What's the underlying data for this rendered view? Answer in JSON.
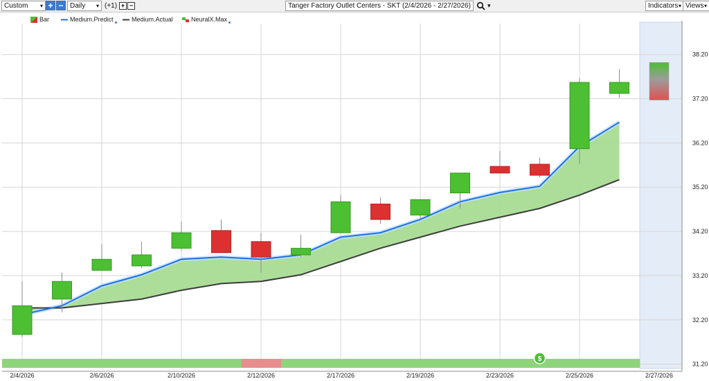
{
  "toolbar": {
    "period_select": "Custom",
    "interval_select": "Daily",
    "offset_label": "(+1)",
    "chart_title": "Tanger Factory Outlet Centers - SKT (2/4/2026 - 2/27/2026)",
    "indicators_label": "Indicators",
    "views_label": "Views",
    "plus_glyph": "+",
    "minus_glyph": "−",
    "caret_glyph": "▾"
  },
  "legend": [
    {
      "label": "Bar",
      "icon": "bar-swatch-icon"
    },
    {
      "label": "Medium.Predict",
      "icon": "blue-line-icon"
    },
    {
      "label": "Medium.Actual",
      "icon": "dark-line-icon"
    },
    {
      "label": "NeuralX.Max",
      "icon": "neuralx-swatch-icon"
    }
  ],
  "colors": {
    "up": "#4cbf33",
    "down": "#dd3030",
    "predict": "#1f6fe0",
    "actual": "#3b3b3b",
    "band_fill": "#a8dc94",
    "forecast_bg": "#e4ecf7",
    "strip_green": "#8fd47c",
    "strip_red": "#e88d8d",
    "grid": "#d6d6d6"
  },
  "chart_data": {
    "type": "candlestick",
    "title": "Tanger Factory Outlet Centers - SKT (2/4/2026 - 2/27/2026)",
    "ylim": [
      31.1,
      38.9
    ],
    "y_ticks": [
      "31.20",
      "32.20",
      "33.20",
      "34.20",
      "35.20",
      "36.20",
      "37.20",
      "38.20"
    ],
    "x_tick_labels": [
      "2/4/2026",
      "2/6/2026",
      "2/10/2026",
      "2/12/2026",
      "2/17/2026",
      "2/19/2026",
      "2/23/2026",
      "2/25/2026",
      "2/27/2026"
    ],
    "dates": [
      "2/4/2026",
      "2/5/2026",
      "2/6/2026",
      "2/9/2026",
      "2/10/2026",
      "2/11/2026",
      "2/12/2026",
      "2/13/2026",
      "2/17/2026",
      "2/18/2026",
      "2/19/2026",
      "2/20/2026",
      "2/23/2026",
      "2/24/2026",
      "2/25/2026",
      "2/26/2026"
    ],
    "candles": [
      {
        "date": "2/4/2026",
        "open": 31.87,
        "high": 33.07,
        "low": 31.81,
        "close": 32.52
      },
      {
        "date": "2/5/2026",
        "open": 32.67,
        "high": 33.27,
        "low": 32.37,
        "close": 33.07
      },
      {
        "date": "2/6/2026",
        "open": 33.32,
        "high": 33.92,
        "low": 33.32,
        "close": 33.57
      },
      {
        "date": "2/9/2026",
        "open": 33.42,
        "high": 33.97,
        "low": 33.37,
        "close": 33.67
      },
      {
        "date": "2/10/2026",
        "open": 33.82,
        "high": 34.42,
        "low": 33.77,
        "close": 34.17
      },
      {
        "date": "2/11/2026",
        "open": 34.22,
        "high": 34.47,
        "low": 33.72,
        "close": 33.72
      },
      {
        "date": "2/12/2026",
        "open": 33.97,
        "high": 34.17,
        "low": 33.27,
        "close": 33.62
      },
      {
        "date": "2/13/2026",
        "open": 33.67,
        "high": 34.12,
        "low": 33.62,
        "close": 33.82
      },
      {
        "date": "2/17/2026",
        "open": 34.17,
        "high": 35.02,
        "low": 34.17,
        "close": 34.87
      },
      {
        "date": "2/18/2026",
        "open": 34.82,
        "high": 34.97,
        "low": 34.37,
        "close": 34.47
      },
      {
        "date": "2/19/2026",
        "open": 34.57,
        "high": 34.92,
        "low": 34.47,
        "close": 34.92
      },
      {
        "date": "2/20/2026",
        "open": 35.07,
        "high": 35.52,
        "low": 34.72,
        "close": 35.52
      },
      {
        "date": "2/23/2026",
        "open": 35.67,
        "high": 36.02,
        "low": 35.52,
        "close": 35.52
      },
      {
        "date": "2/24/2026",
        "open": 35.72,
        "high": 35.87,
        "low": 35.42,
        "close": 35.47
      },
      {
        "date": "2/25/2026",
        "open": 36.07,
        "high": 37.67,
        "low": 35.72,
        "close": 37.57
      },
      {
        "date": "2/26/2026",
        "open": 37.32,
        "high": 37.87,
        "low": 37.22,
        "close": 37.57
      }
    ],
    "forecast_bar": {
      "date": "2/27/2026",
      "high": 38.02,
      "low": 37.17
    },
    "series": [
      {
        "name": "Medium.Predict",
        "values": [
          32.32,
          32.52,
          32.97,
          33.22,
          33.57,
          33.62,
          33.57,
          33.67,
          34.07,
          34.17,
          34.47,
          34.87,
          35.08,
          35.22,
          36.12,
          36.67
        ]
      },
      {
        "name": "Medium.Actual",
        "values": [
          32.47,
          32.47,
          32.57,
          32.67,
          32.87,
          33.02,
          33.07,
          33.22,
          33.52,
          33.82,
          34.07,
          34.32,
          34.52,
          34.72,
          35.02,
          35.37
        ]
      }
    ],
    "signal_strip": [
      "green",
      "green",
      "green",
      "green",
      "green",
      "green",
      "red",
      "green",
      "green",
      "green",
      "green",
      "green",
      "green",
      "green",
      "green",
      "green"
    ],
    "signal_marker": {
      "date": "2/24/2026",
      "glyph": "$"
    }
  }
}
